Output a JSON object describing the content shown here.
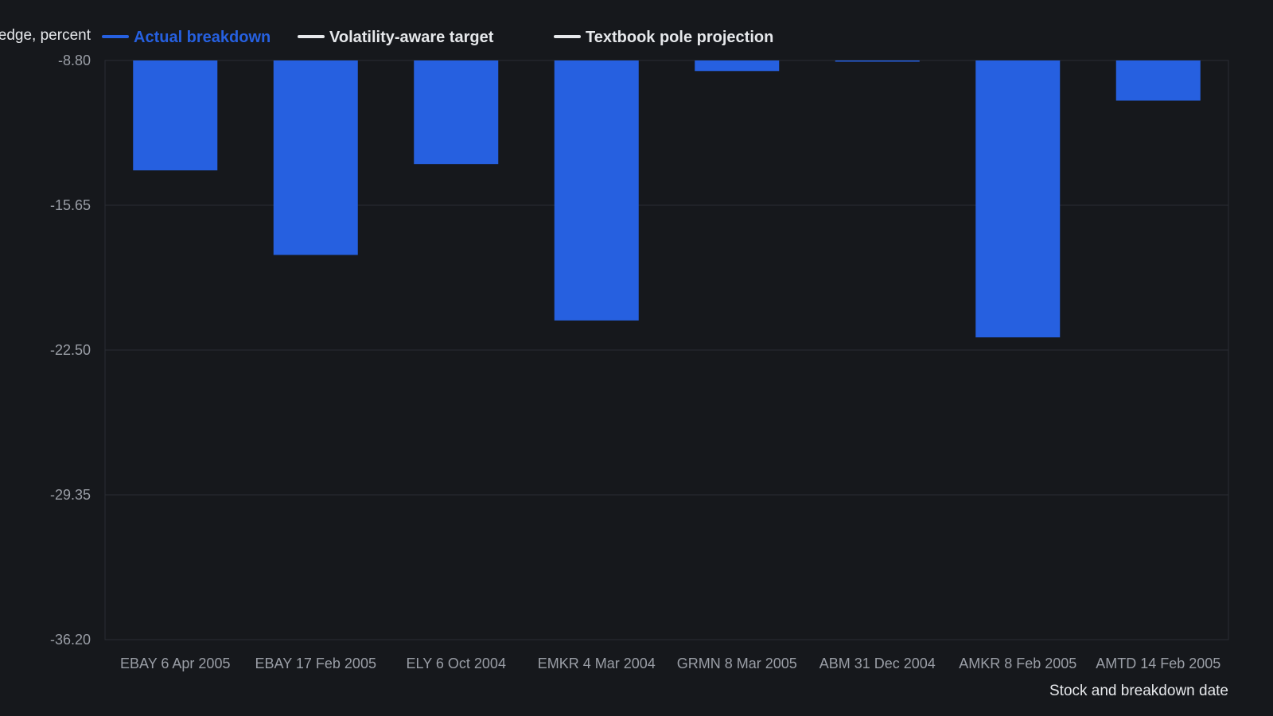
{
  "chart_data": {
    "type": "bar",
    "ylabel": "Breakdown depth below wedge, percent",
    "xlabel": "Stock and breakdown date",
    "ylim": [
      -36.2,
      -8.8
    ],
    "yticks": [
      "-8.80",
      "-15.65",
      "-22.50",
      "-29.35",
      "-36.20"
    ],
    "ytick_values": [
      -8.8,
      -15.65,
      -22.5,
      -29.35,
      -36.2
    ],
    "categories": [
      "EBAY 6 Apr 2005",
      "EBAY 17 Feb 2005",
      "ELY 6 Oct 2004",
      "EMKR 4 Mar 2004",
      "GRMN 8 Mar 2005",
      "ABM 31 Dec 2004",
      "AMKR 8 Feb 2005",
      "AMTD 14 Feb 2005"
    ],
    "series": [
      {
        "name": "Actual breakdown",
        "color": "#2660e0",
        "values": [
          -14.0,
          -18.0,
          -13.7,
          -21.1,
          -9.3,
          -8.85,
          -21.9,
          -10.7
        ]
      }
    ],
    "legend": {
      "placement": "top",
      "items": [
        {
          "label": "Actual breakdown",
          "color": "#2660e0"
        },
        {
          "label": "Volatility-aware target",
          "color": "#e6e8eb"
        },
        {
          "label": "Textbook pole projection",
          "color": "#e6e8eb"
        }
      ]
    },
    "grid": true
  }
}
